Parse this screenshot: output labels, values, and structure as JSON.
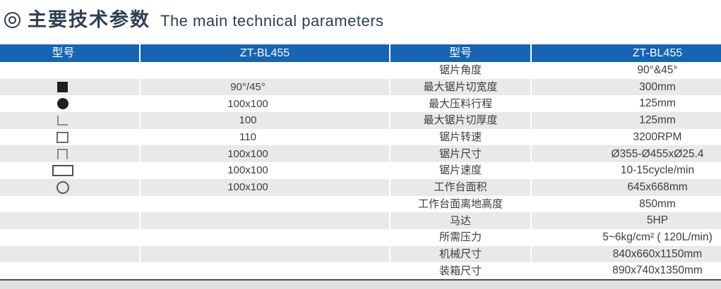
{
  "title": {
    "zh": "主要技术参数",
    "en": "The main technical parameters"
  },
  "table": {
    "header": [
      {
        "label": "型号"
      },
      {
        "label": "ZT-BL455"
      },
      {
        "label": "型号"
      },
      {
        "label": "ZT-BL455"
      }
    ],
    "rows": [
      {
        "icon": "",
        "left_value": "",
        "param": "锯片角度",
        "value": "90°&45°"
      },
      {
        "icon": "filled-square-icon",
        "left_value": "90°/45°",
        "param": "最大锯片切宽度",
        "value": "300mm"
      },
      {
        "icon": "filled-circle-icon",
        "left_value": "100x100",
        "param": "最大压料行程",
        "value": "125mm"
      },
      {
        "icon": "angle-icon",
        "left_value": "100",
        "param": "最大锯片切厚度",
        "value": "125mm"
      },
      {
        "icon": "square-outline-icon",
        "left_value": "110",
        "param": "锯片转速",
        "value": "3200RPM"
      },
      {
        "icon": "channel-icon",
        "left_value": "100x100",
        "param": "锯片尺寸",
        "value": "Ø355-Ø455xØ25.4"
      },
      {
        "icon": "rect-outline-icon",
        "left_value": "100x100",
        "param": "锯片速度",
        "value": "10-15cycle/min"
      },
      {
        "icon": "circle-outline-icon",
        "left_value": "100x100",
        "param": "工作台面积",
        "value": "645x668mm"
      },
      {
        "icon": "",
        "left_value": "",
        "param": "工作台面离地高度",
        "value": "850mm"
      },
      {
        "icon": "",
        "left_value": "",
        "param": "马达",
        "value": "5HP"
      },
      {
        "icon": "",
        "left_value": "",
        "param": "所需压力",
        "value": "5~6kg/cm² ( 120L/min)"
      },
      {
        "icon": "",
        "left_value": "",
        "param": "机械尺寸",
        "value": "840x660x1150mm"
      },
      {
        "icon": "",
        "left_value": "",
        "param": "装箱尺寸",
        "value": "890x740x1350mm"
      }
    ]
  },
  "colors": {
    "header_blue": "#1565b2",
    "row_gray": "#e9e9e9",
    "text_dark": "#3d3d3d",
    "title_navy": "#2e3f55",
    "footer_gray": "#e1e1e1",
    "line_dark": "#4c4c4c"
  }
}
